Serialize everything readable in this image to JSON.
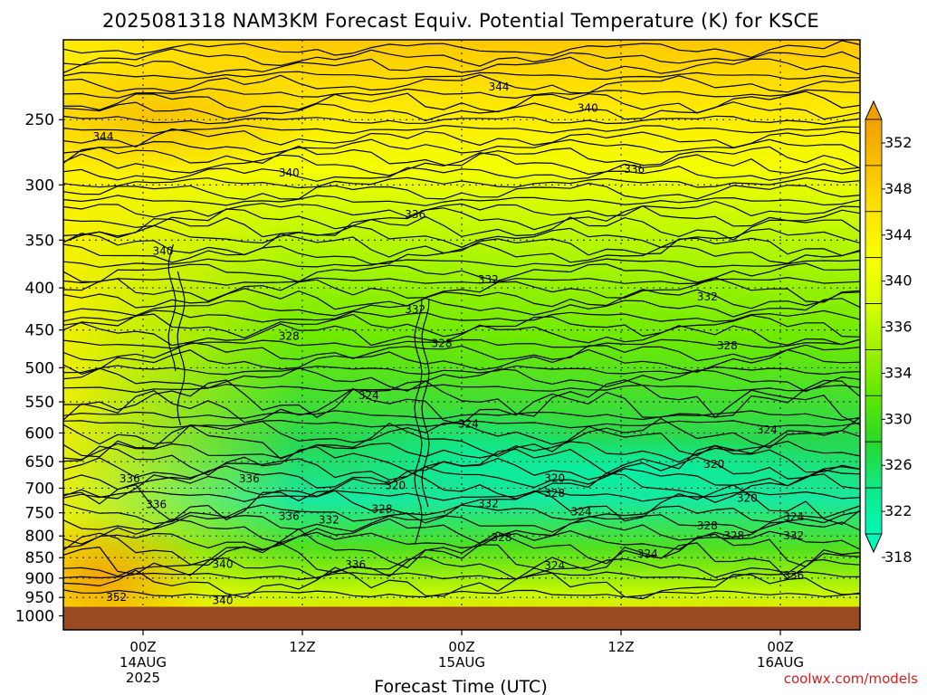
{
  "chart_data": {
    "type": "heatmap",
    "title": "2025081318 NAM3KM Forecast Equiv. Potential Temperature (K) for KSCE",
    "xlabel": "Forecast Time (UTC)",
    "ylabel": "",
    "y_levels_hPa": [
      250,
      300,
      350,
      400,
      450,
      500,
      550,
      600,
      650,
      700,
      750,
      800,
      850,
      900,
      950,
      1000
    ],
    "y_scale": "log-pressure",
    "ylim": [
      1040,
      200
    ],
    "x_ticks": [
      {
        "hour": 6,
        "labels": [
          "00Z",
          "14AUG",
          "2025"
        ]
      },
      {
        "hour": 18,
        "labels": [
          "12Z"
        ]
      },
      {
        "hour": 30,
        "labels": [
          "00Z",
          "15AUG"
        ]
      },
      {
        "hour": 42,
        "labels": [
          "12Z"
        ]
      },
      {
        "hour": 54,
        "labels": [
          "00Z",
          "16AUG"
        ]
      }
    ],
    "xlim": [
      0,
      60
    ],
    "colorbar": {
      "levels": [
        352,
        348,
        344,
        340,
        336,
        334,
        330,
        326,
        322,
        318
      ],
      "colors": [
        "#f0a000",
        "#f8c000",
        "#ffe400",
        "#f8ff00",
        "#d8ff00",
        "#a0f000",
        "#60e800",
        "#28d828",
        "#10e888",
        "#00f8b8"
      ]
    },
    "contour_labels": [
      {
        "text": "344",
        "hour": 3.0,
        "p": 262
      },
      {
        "text": "344",
        "hour": 32.8,
        "p": 228
      },
      {
        "text": "340",
        "hour": 39.5,
        "p": 242
      },
      {
        "text": "340",
        "hour": 17.0,
        "p": 290
      },
      {
        "text": "336",
        "hour": 43.0,
        "p": 287
      },
      {
        "text": "336",
        "hour": 26.5,
        "p": 326
      },
      {
        "text": "340",
        "hour": 7.5,
        "p": 361
      },
      {
        "text": "332",
        "hour": 32.0,
        "p": 391
      },
      {
        "text": "332",
        "hour": 48.5,
        "p": 410
      },
      {
        "text": "332",
        "hour": 26.5,
        "p": 425
      },
      {
        "text": "328",
        "hour": 17.0,
        "p": 458
      },
      {
        "text": "328",
        "hour": 28.5,
        "p": 467
      },
      {
        "text": "328",
        "hour": 50.0,
        "p": 470
      },
      {
        "text": "324",
        "hour": 23.0,
        "p": 540
      },
      {
        "text": "324",
        "hour": 30.5,
        "p": 585
      },
      {
        "text": "324",
        "hour": 53.0,
        "p": 595
      },
      {
        "text": "320",
        "hour": 37.0,
        "p": 681
      },
      {
        "text": "320",
        "hour": 49.0,
        "p": 655
      },
      {
        "text": "320",
        "hour": 25.0,
        "p": 695
      },
      {
        "text": "320",
        "hour": 51.5,
        "p": 720
      },
      {
        "text": "336",
        "hour": 5.0,
        "p": 682
      },
      {
        "text": "336",
        "hour": 14.0,
        "p": 682
      },
      {
        "text": "336",
        "hour": 7.0,
        "p": 733
      },
      {
        "text": "336",
        "hour": 17.0,
        "p": 757
      },
      {
        "text": "332",
        "hour": 20.0,
        "p": 765
      },
      {
        "text": "328",
        "hour": 24.0,
        "p": 742
      },
      {
        "text": "328",
        "hour": 37.0,
        "p": 710
      },
      {
        "text": "332",
        "hour": 32.0,
        "p": 731
      },
      {
        "text": "324",
        "hour": 39.0,
        "p": 748
      },
      {
        "text": "324",
        "hour": 55.0,
        "p": 758
      },
      {
        "text": "328",
        "hour": 48.5,
        "p": 778
      },
      {
        "text": "328",
        "hour": 50.5,
        "p": 800
      },
      {
        "text": "328",
        "hour": 33.0,
        "p": 804
      },
      {
        "text": "332",
        "hour": 55.0,
        "p": 800
      },
      {
        "text": "324",
        "hour": 37.0,
        "p": 869
      },
      {
        "text": "324",
        "hour": 44.0,
        "p": 841
      },
      {
        "text": "336",
        "hour": 22.0,
        "p": 867
      },
      {
        "text": "336",
        "hour": 55.0,
        "p": 894
      },
      {
        "text": "340",
        "hour": 12.0,
        "p": 866
      },
      {
        "text": "340",
        "hour": 12.0,
        "p": 958
      },
      {
        "text": "352",
        "hour": 4.0,
        "p": 950
      }
    ]
  },
  "watermark": "coolwx.com/models"
}
